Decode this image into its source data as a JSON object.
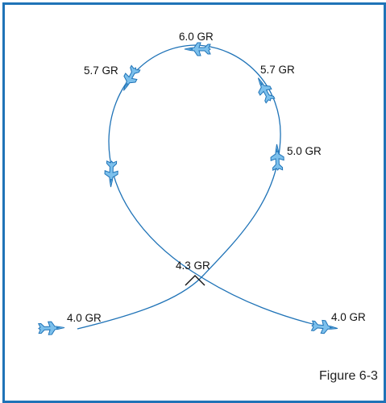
{
  "figure_caption": "Figure 6-3",
  "colors": {
    "frame": "#1f73b7",
    "path": "#1f73b7",
    "aircraft": "#1f73b7",
    "text": "#111111"
  },
  "maneuver": {
    "labels": {
      "entry": "4.0 GR",
      "pull_up": "4.3 GR",
      "left_vertical": "5.7 GR",
      "top": "6.0 GR",
      "right_vertical": "5.7 GR",
      "right_descent": "5.0 GR",
      "exit": "4.0 GR"
    }
  }
}
